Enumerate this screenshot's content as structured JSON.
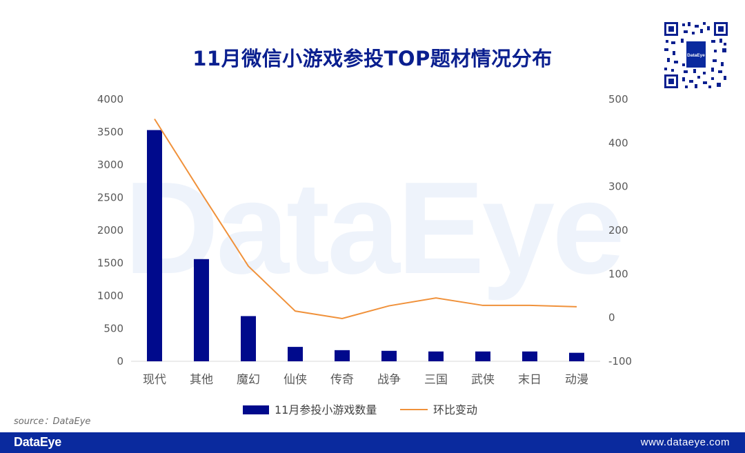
{
  "title": "11月微信小游戏参投TOP题材情况分布",
  "watermark": "DataEye",
  "source": "source：DataEye",
  "footer": {
    "brand": "DataEye",
    "url": "www.dataeye.com"
  },
  "qr": {
    "center_label": "DataEye"
  },
  "colors": {
    "bar": "#000a8c",
    "line": "#f0913a",
    "footer": "#0a2a9e",
    "title": "#0a1f8f"
  },
  "chart_data": {
    "type": "bar",
    "categories": [
      "现代",
      "其他",
      "魔幻",
      "仙侠",
      "传奇",
      "战争",
      "三国",
      "武侠",
      "末日",
      "动漫"
    ],
    "series": [
      {
        "name": "11月参投小游戏数量",
        "type": "bar",
        "axis": "left",
        "values": [
          3530,
          1560,
          690,
          220,
          170,
          160,
          150,
          150,
          150,
          130
        ]
      },
      {
        "name": "环比变动",
        "type": "line",
        "axis": "right",
        "values": [
          455,
          285,
          118,
          15,
          -2,
          27,
          45,
          28,
          28,
          25
        ]
      }
    ],
    "y_left": {
      "min": 0,
      "max": 4000,
      "ticks": [
        0,
        500,
        1000,
        1500,
        2000,
        2500,
        3000,
        3500,
        4000
      ]
    },
    "y_right": {
      "min": -100,
      "max": 500,
      "ticks": [
        -100,
        0,
        100,
        200,
        300,
        400,
        500
      ]
    },
    "grid": false,
    "legend": "bottom"
  }
}
